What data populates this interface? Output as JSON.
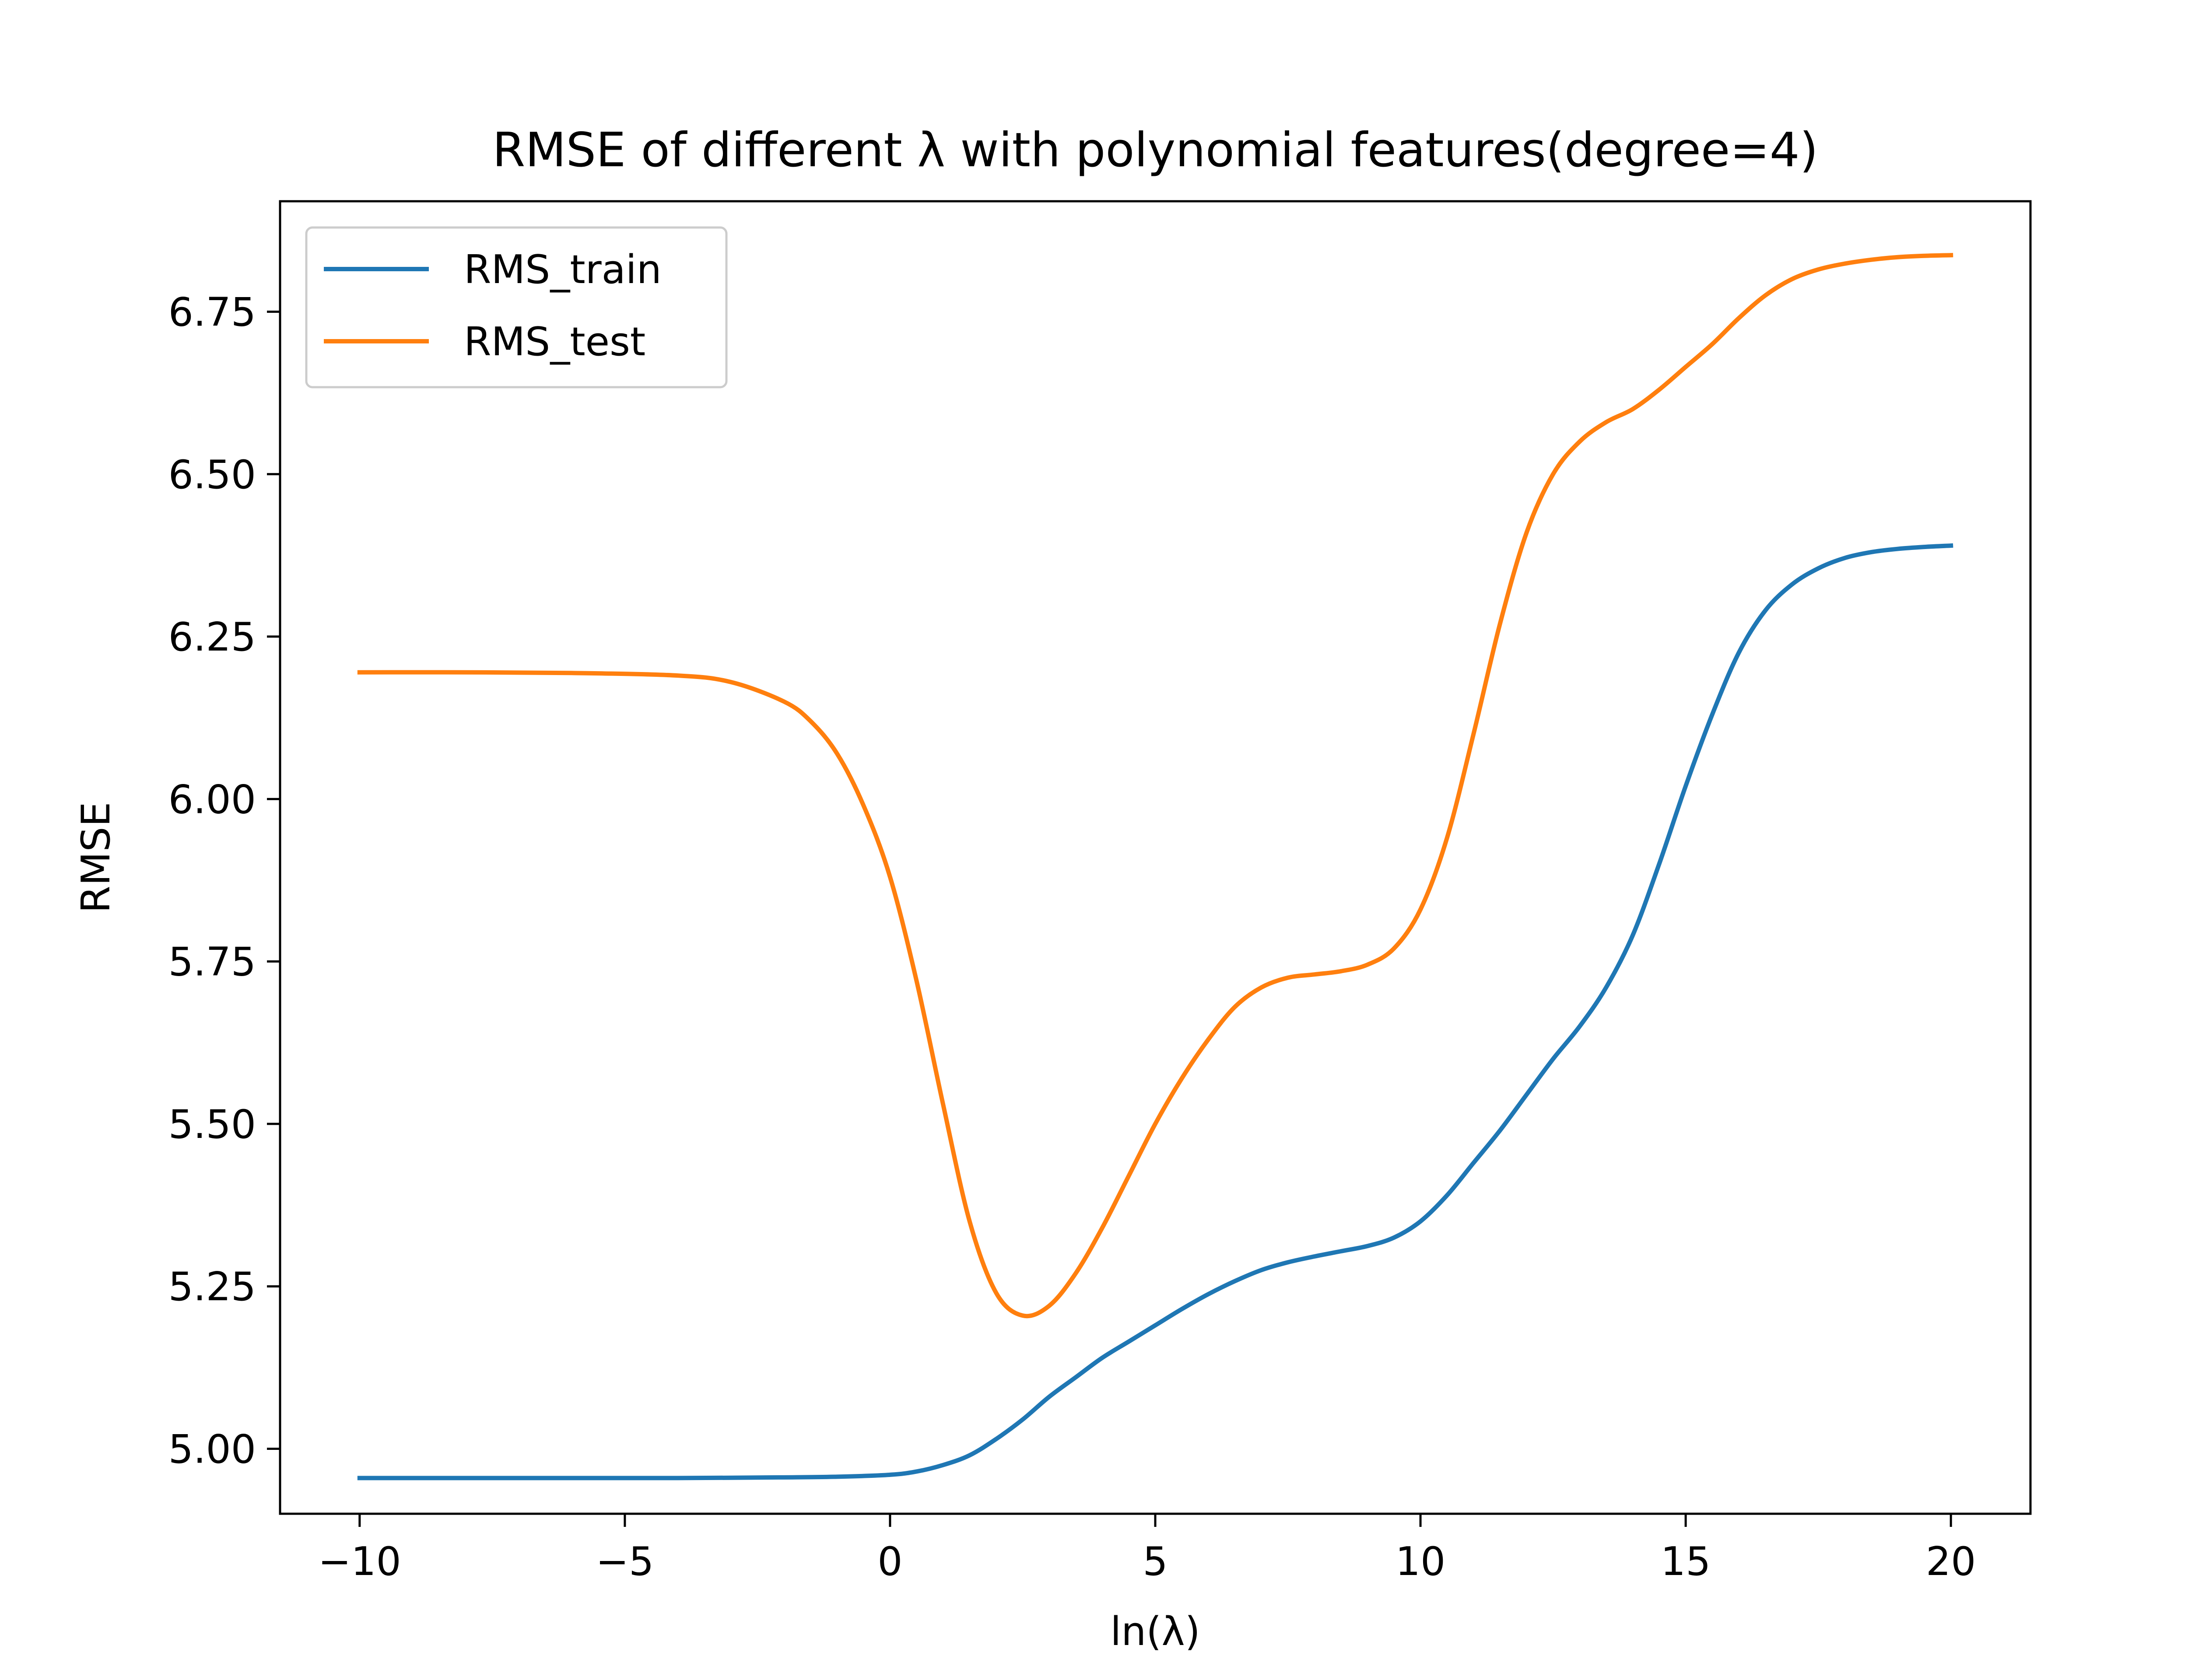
{
  "chart_data": {
    "type": "line",
    "title": "RMSE of different λ with polynomial features(degree=4)",
    "xlabel": "ln(λ)",
    "ylabel": "RMSE",
    "xlim": [
      -11.5,
      21.5
    ],
    "ylim": [
      4.9,
      6.92
    ],
    "xticks": [
      -10,
      -5,
      0,
      5,
      10,
      15,
      20
    ],
    "xtick_labels": [
      "−10",
      "−5",
      "0",
      "5",
      "10",
      "15",
      "20"
    ],
    "yticks": [
      5.0,
      5.25,
      5.5,
      5.75,
      6.0,
      6.25,
      6.5,
      6.75
    ],
    "ytick_labels": [
      "5.00",
      "5.25",
      "5.50",
      "5.75",
      "6.00",
      "6.25",
      "6.50",
      "6.75"
    ],
    "grid": false,
    "legend_position": "top-left",
    "series": [
      {
        "name": "RMS_train",
        "color": "#1f77b4",
        "x": [
          -10,
          -8,
          -6,
          -4,
          -2,
          -1,
          0,
          0.5,
          1,
          1.5,
          2,
          2.5,
          3,
          3.5,
          4,
          4.5,
          5,
          5.5,
          6,
          6.5,
          7,
          7.5,
          8,
          8.5,
          9,
          9.5,
          10,
          10.5,
          11,
          11.5,
          12,
          12.5,
          13,
          13.5,
          14,
          14.5,
          15,
          15.5,
          16,
          16.5,
          17,
          17.5,
          18,
          18.5,
          19,
          19.5,
          20
        ],
        "y": [
          4.955,
          4.955,
          4.955,
          4.955,
          4.956,
          4.957,
          4.96,
          4.965,
          4.975,
          4.99,
          5.015,
          5.045,
          5.08,
          5.11,
          5.14,
          5.165,
          5.19,
          5.215,
          5.238,
          5.258,
          5.275,
          5.287,
          5.296,
          5.304,
          5.312,
          5.325,
          5.35,
          5.39,
          5.44,
          5.49,
          5.545,
          5.6,
          5.65,
          5.71,
          5.79,
          5.9,
          6.02,
          6.13,
          6.225,
          6.29,
          6.33,
          6.355,
          6.371,
          6.38,
          6.385,
          6.388,
          6.39
        ]
      },
      {
        "name": "RMS_test",
        "color": "#ff7f0e",
        "x": [
          -10,
          -8,
          -6,
          -4,
          -3,
          -2,
          -1.5,
          -1,
          -0.5,
          0,
          0.5,
          1,
          1.5,
          2,
          2.5,
          3,
          3.5,
          4,
          4.5,
          5,
          5.5,
          6,
          6.5,
          7,
          7.5,
          8,
          8.5,
          9,
          9.5,
          10,
          10.5,
          11,
          11.5,
          12,
          12.5,
          13,
          13.5,
          14,
          14.5,
          15,
          15.5,
          16,
          16.5,
          17,
          17.5,
          18,
          18.5,
          19,
          19.5,
          20
        ],
        "y": [
          6.195,
          6.195,
          6.194,
          6.19,
          6.18,
          6.15,
          6.12,
          6.07,
          5.99,
          5.88,
          5.72,
          5.53,
          5.35,
          5.24,
          5.205,
          5.22,
          5.27,
          5.34,
          5.42,
          5.5,
          5.57,
          5.63,
          5.68,
          5.71,
          5.725,
          5.73,
          5.735,
          5.745,
          5.77,
          5.83,
          5.94,
          6.1,
          6.27,
          6.41,
          6.5,
          6.55,
          6.58,
          6.6,
          6.63,
          6.665,
          6.7,
          6.74,
          6.775,
          6.8,
          6.815,
          6.824,
          6.83,
          6.834,
          6.836,
          6.837
        ]
      }
    ]
  }
}
